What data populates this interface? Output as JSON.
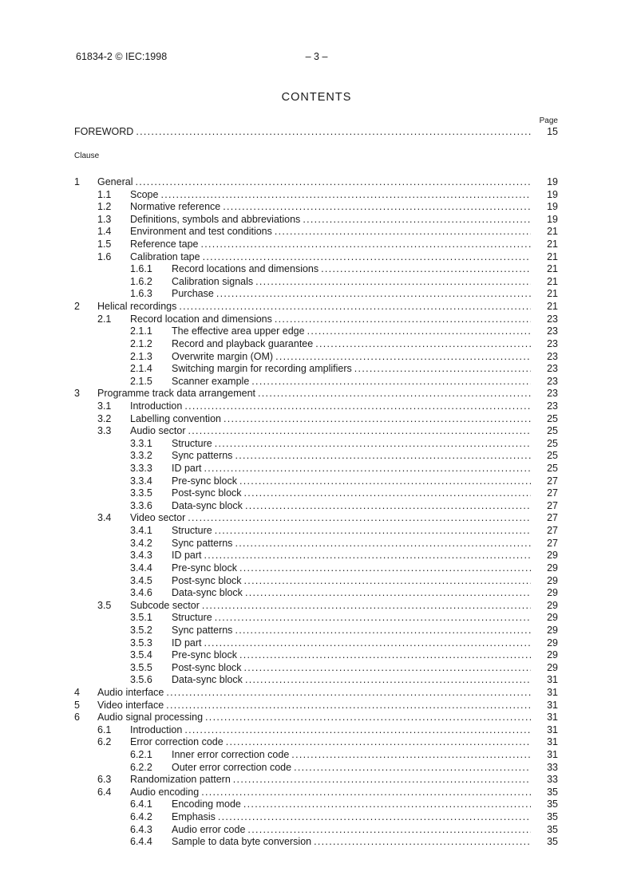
{
  "colors": {
    "text": "#1a1a1a",
    "background": "#ffffff"
  },
  "header": {
    "doc_ref": "61834-2 © IEC:1998",
    "page_marker": "– 3 –"
  },
  "contents_title": "CONTENTS",
  "page_column_label": "Page",
  "clause_label": "Clause",
  "foreword": {
    "label": "FOREWORD",
    "page": "15"
  },
  "toc_entries": [
    {
      "num": "1",
      "title": "General",
      "page": "19",
      "level": 1
    },
    {
      "num": "1.1",
      "title": "Scope",
      "page": "19",
      "level": 2
    },
    {
      "num": "1.2",
      "title": "Normative reference",
      "page": "19",
      "level": 2
    },
    {
      "num": "1.3",
      "title": "Definitions, symbols and abbreviations",
      "page": "19",
      "level": 2
    },
    {
      "num": "1.4",
      "title": "Environment and test conditions",
      "page": "21",
      "level": 2
    },
    {
      "num": "1.5",
      "title": "Reference tape",
      "page": "21",
      "level": 2
    },
    {
      "num": "1.6",
      "title": "Calibration tape",
      "page": "21",
      "level": 2
    },
    {
      "num": "1.6.1",
      "title": "Record locations and dimensions",
      "page": "21",
      "level": 3
    },
    {
      "num": "1.6.2",
      "title": "Calibration signals",
      "page": "21",
      "level": 3
    },
    {
      "num": "1.6.3",
      "title": "Purchase",
      "page": "21",
      "level": 3
    },
    {
      "num": "2",
      "title": "Helical recordings",
      "page": "21",
      "level": 1
    },
    {
      "num": "2.1",
      "title": "Record location and dimensions",
      "page": "23",
      "level": 2
    },
    {
      "num": "2.1.1",
      "title": "The effective area upper edge",
      "page": "23",
      "level": 3
    },
    {
      "num": "2.1.2",
      "title": "Record and playback guarantee",
      "page": "23",
      "level": 3
    },
    {
      "num": "2.1.3",
      "title": "Overwrite margin (OM)",
      "page": "23",
      "level": 3
    },
    {
      "num": "2.1.4",
      "title": "Switching margin for recording amplifiers",
      "page": "23",
      "level": 3
    },
    {
      "num": "2.1.5",
      "title": "Scanner example",
      "page": "23",
      "level": 3
    },
    {
      "num": "3",
      "title": "Programme track data arrangement",
      "page": "23",
      "level": 1
    },
    {
      "num": "3.1",
      "title": "Introduction",
      "page": "23",
      "level": 2
    },
    {
      "num": "3.2",
      "title": "Labelling convention",
      "page": "25",
      "level": 2
    },
    {
      "num": "3.3",
      "title": "Audio sector",
      "page": "25",
      "level": 2
    },
    {
      "num": "3.3.1",
      "title": "Structure",
      "page": "25",
      "level": 3
    },
    {
      "num": "3.3.2",
      "title": "Sync patterns",
      "page": "25",
      "level": 3
    },
    {
      "num": "3.3.3",
      "title": "ID part",
      "page": "25",
      "level": 3
    },
    {
      "num": "3.3.4",
      "title": "Pre-sync block",
      "page": "27",
      "level": 3
    },
    {
      "num": "3.3.5",
      "title": "Post-sync block",
      "page": "27",
      "level": 3
    },
    {
      "num": "3.3.6",
      "title": "Data-sync block",
      "page": "27",
      "level": 3
    },
    {
      "num": "3.4",
      "title": "Video sector",
      "page": "27",
      "level": 2
    },
    {
      "num": "3.4.1",
      "title": "Structure",
      "page": "27",
      "level": 3
    },
    {
      "num": "3.4.2",
      "title": "Sync patterns",
      "page": "27",
      "level": 3
    },
    {
      "num": "3.4.3",
      "title": "ID part",
      "page": "29",
      "level": 3
    },
    {
      "num": "3.4.4",
      "title": "Pre-sync block",
      "page": "29",
      "level": 3
    },
    {
      "num": "3.4.5",
      "title": "Post-sync block",
      "page": "29",
      "level": 3
    },
    {
      "num": "3.4.6",
      "title": "Data-sync block",
      "page": "29",
      "level": 3
    },
    {
      "num": "3.5",
      "title": "Subcode sector",
      "page": "29",
      "level": 2
    },
    {
      "num": "3.5.1",
      "title": "Structure",
      "page": "29",
      "level": 3
    },
    {
      "num": "3.5.2",
      "title": "Sync patterns",
      "page": "29",
      "level": 3
    },
    {
      "num": "3.5.3",
      "title": "ID part",
      "page": "29",
      "level": 3
    },
    {
      "num": "3.5.4",
      "title": "Pre-sync block",
      "page": "29",
      "level": 3
    },
    {
      "num": "3.5.5",
      "title": "Post-sync block",
      "page": "29",
      "level": 3
    },
    {
      "num": "3.5.6",
      "title": "Data-sync block",
      "page": "31",
      "level": 3
    },
    {
      "num": "4",
      "title": "Audio interface",
      "page": "31",
      "level": 1
    },
    {
      "num": "5",
      "title": "Video interface",
      "page": "31",
      "level": 1
    },
    {
      "num": "6",
      "title": "Audio signal processing",
      "page": "31",
      "level": 1
    },
    {
      "num": "6.1",
      "title": "Introduction",
      "page": "31",
      "level": 2
    },
    {
      "num": "6.2",
      "title": "Error correction code",
      "page": "31",
      "level": 2
    },
    {
      "num": "6.2.1",
      "title": "Inner error correction code",
      "page": "31",
      "level": 3
    },
    {
      "num": "6.2.2",
      "title": "Outer error correction code",
      "page": "33",
      "level": 3
    },
    {
      "num": "6.3",
      "title": "Randomization pattern",
      "page": "33",
      "level": 2
    },
    {
      "num": "6.4",
      "title": "Audio encoding",
      "page": "35",
      "level": 2
    },
    {
      "num": "6.4.1",
      "title": "Encoding mode",
      "page": "35",
      "level": 3
    },
    {
      "num": "6.4.2",
      "title": "Emphasis",
      "page": "35",
      "level": 3
    },
    {
      "num": "6.4.3",
      "title": "Audio error code",
      "page": "35",
      "level": 3
    },
    {
      "num": "6.4.4",
      "title": "Sample to data byte conversion",
      "page": "35",
      "level": 3
    }
  ]
}
